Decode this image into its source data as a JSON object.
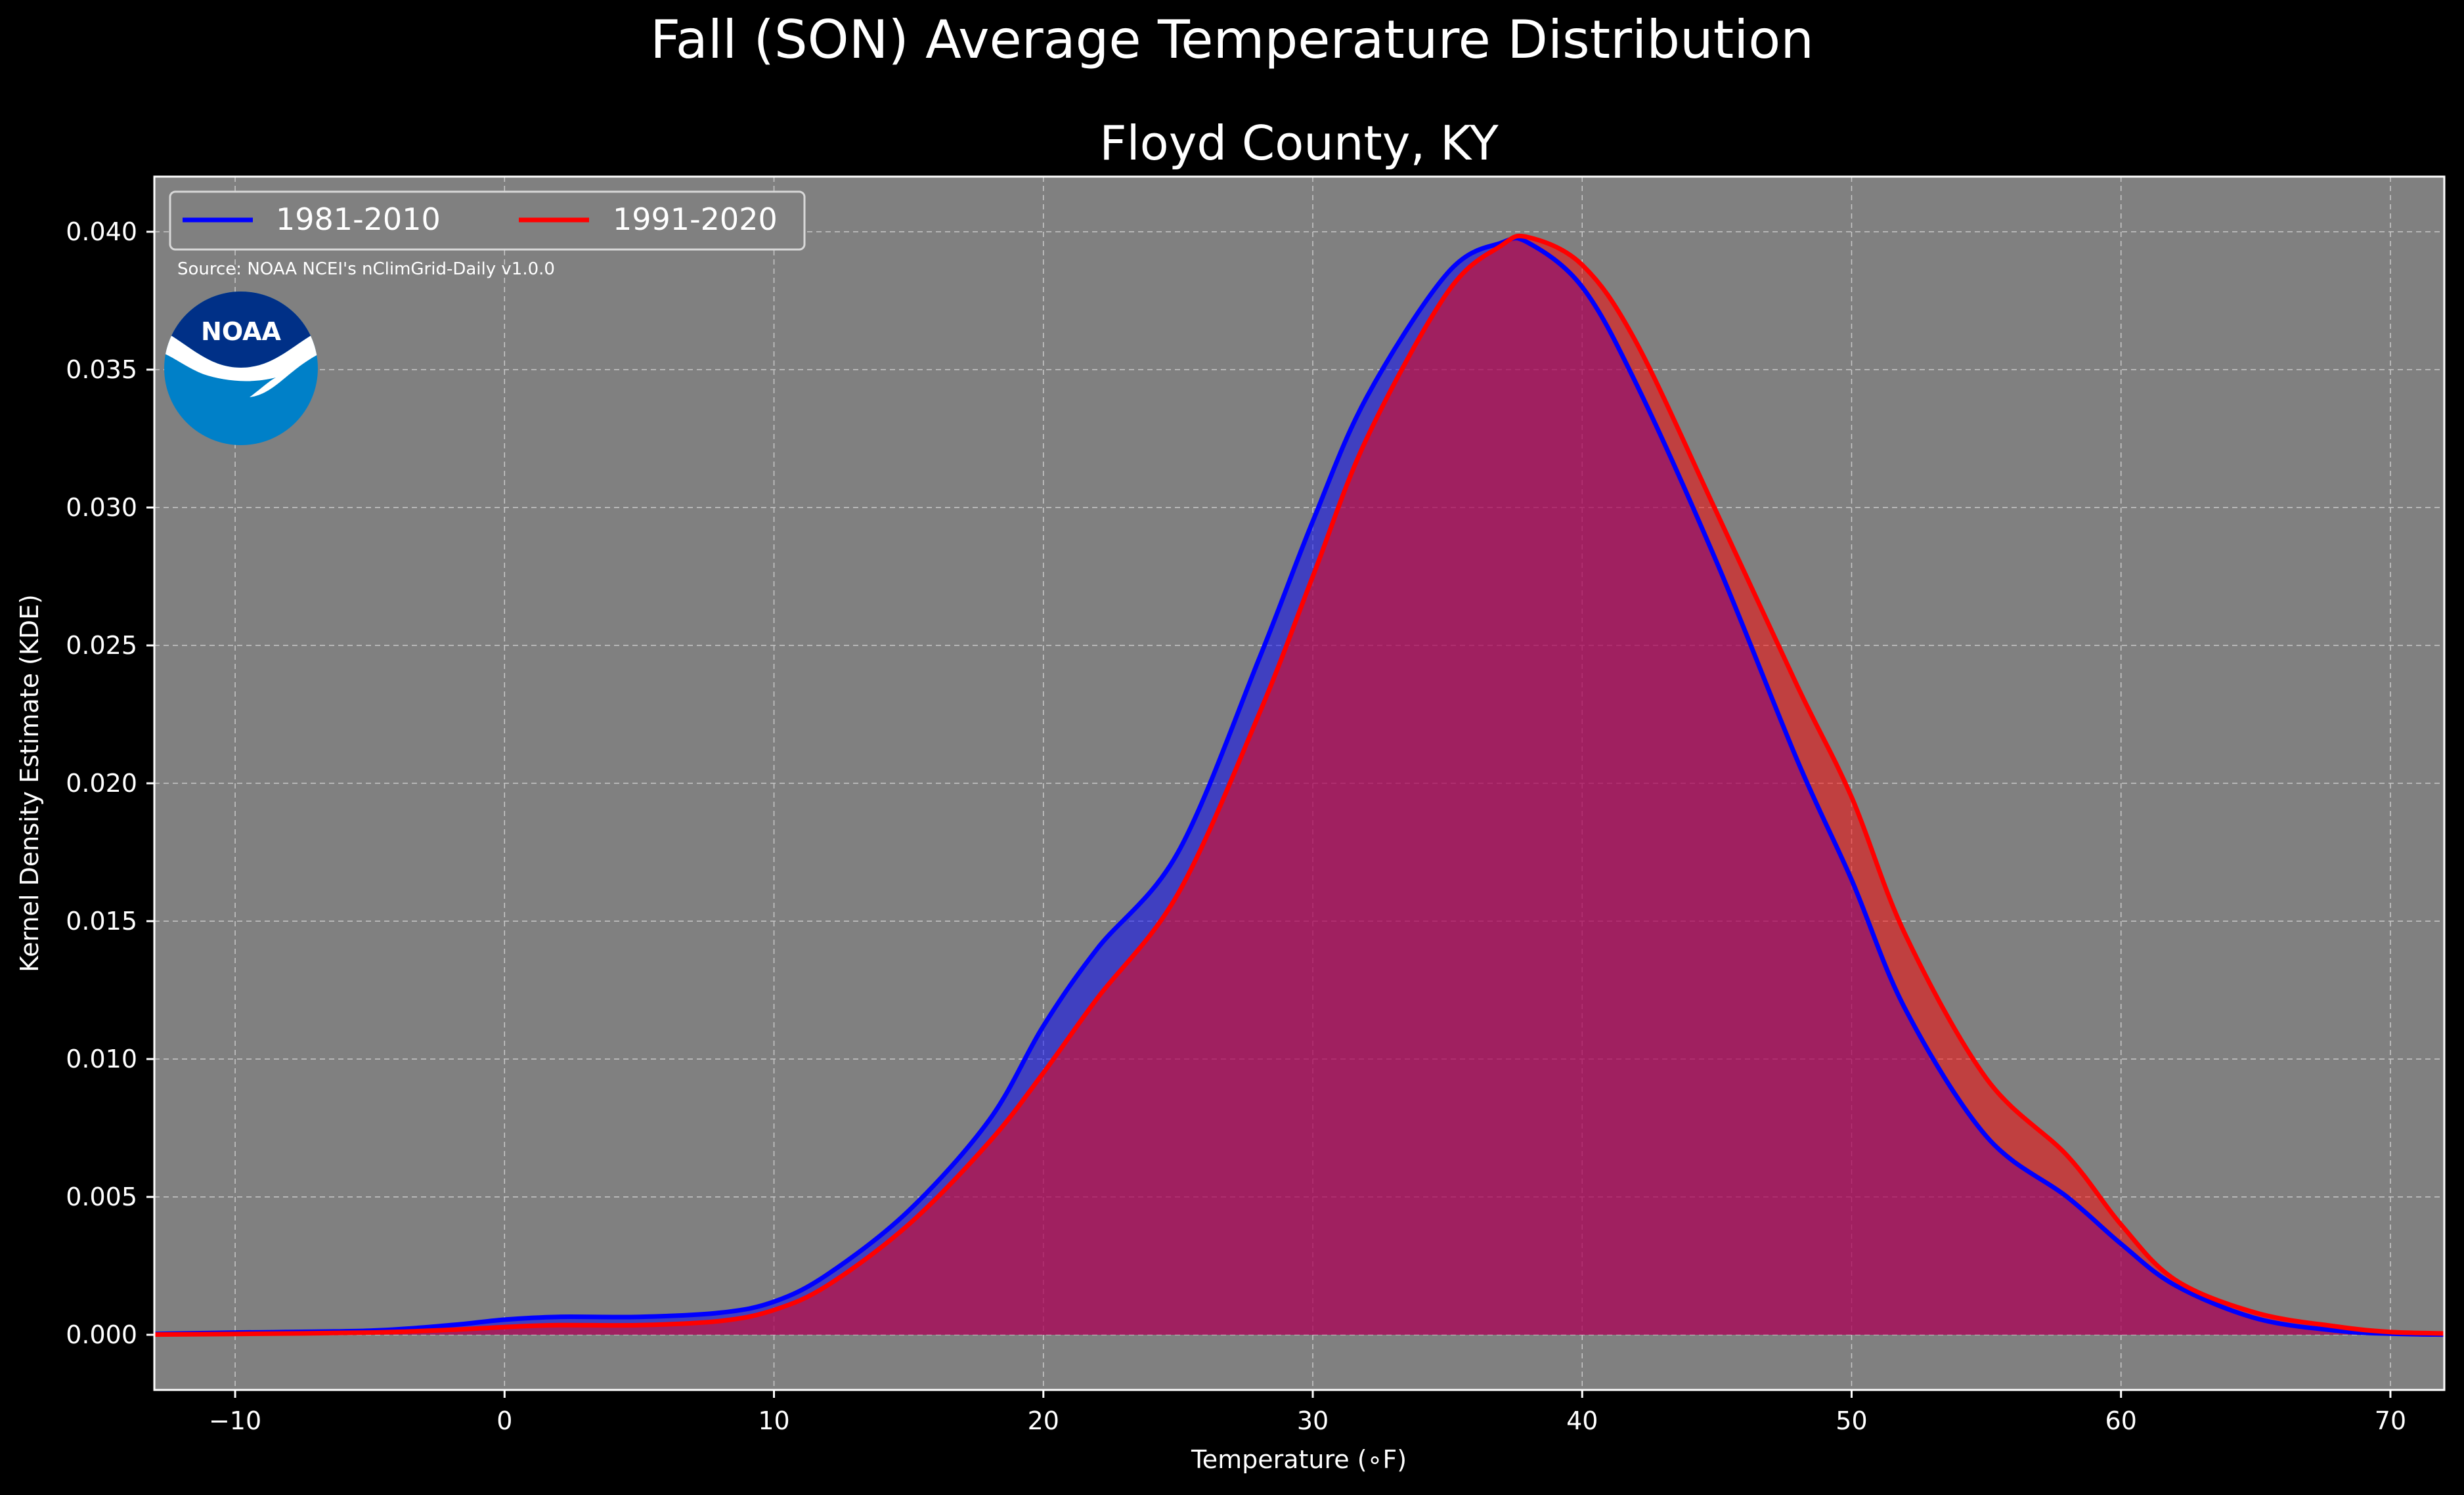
{
  "chart_data": {
    "type": "area",
    "title": "Fall (SON) Average Temperature Distribution",
    "subtitle": "Floyd County, KY",
    "xlabel": "Temperature (∘F)",
    "ylabel": "Kernel Density Estimate (KDE)",
    "xlim": [
      -13,
      72
    ],
    "ylim": [
      -0.002,
      0.042
    ],
    "x_ticks": [
      -10,
      0,
      10,
      20,
      30,
      40,
      50,
      60,
      70
    ],
    "x_tick_labels": [
      "−10",
      "0",
      "10",
      "20",
      "30",
      "40",
      "50",
      "60",
      "70"
    ],
    "y_ticks": [
      0.0,
      0.005,
      0.01,
      0.015,
      0.02,
      0.025,
      0.03,
      0.035,
      0.04
    ],
    "y_tick_labels": [
      "0.000",
      "0.005",
      "0.010",
      "0.015",
      "0.020",
      "0.025",
      "0.030",
      "0.035",
      "0.040"
    ],
    "grid": true,
    "legend_position": "top-left",
    "annotation": "Source: NOAA NCEI's nClimGrid-Daily v1.0.0",
    "logo_text": "NOAA",
    "colors": {
      "background": "#000000",
      "plot_background": "#808080",
      "series_1981": "#0000ff",
      "series_1991": "#ff0000",
      "overlap_fill": "#a01e5a",
      "logo_outer": "#0080c8",
      "logo_inner": "#003087"
    },
    "x": [
      -13,
      -10,
      -5,
      -2,
      0,
      2,
      5,
      8,
      10,
      12,
      15,
      18,
      20,
      22,
      25,
      28,
      30,
      32,
      35,
      37,
      38,
      40,
      42,
      45,
      48,
      50,
      52,
      55,
      58,
      60,
      62,
      65,
      68,
      70,
      72
    ],
    "series": [
      {
        "name": "1981-2010",
        "color": "#0000ff",
        "values": [
          3e-05,
          8e-05,
          0.00015,
          0.00035,
          0.00055,
          0.00065,
          0.00065,
          0.0008,
          0.0012,
          0.0022,
          0.0045,
          0.0078,
          0.0112,
          0.014,
          0.0175,
          0.0245,
          0.0295,
          0.034,
          0.0385,
          0.0396,
          0.0396,
          0.038,
          0.0345,
          0.028,
          0.0208,
          0.0165,
          0.0118,
          0.0072,
          0.005,
          0.0033,
          0.0018,
          0.0006,
          0.00015,
          4e-05,
          1e-05
        ]
      },
      {
        "name": "1991-2020",
        "color": "#ff0000",
        "values": [
          1e-05,
          3e-05,
          8e-05,
          0.00018,
          0.00028,
          0.00035,
          0.00035,
          0.0005,
          0.0009,
          0.0018,
          0.004,
          0.007,
          0.0095,
          0.0122,
          0.016,
          0.0225,
          0.0275,
          0.0325,
          0.0378,
          0.0395,
          0.0398,
          0.0388,
          0.036,
          0.0298,
          0.0235,
          0.0195,
          0.0145,
          0.0093,
          0.0065,
          0.004,
          0.002,
          0.0008,
          0.0003,
          0.0001,
          5e-05
        ]
      }
    ]
  }
}
